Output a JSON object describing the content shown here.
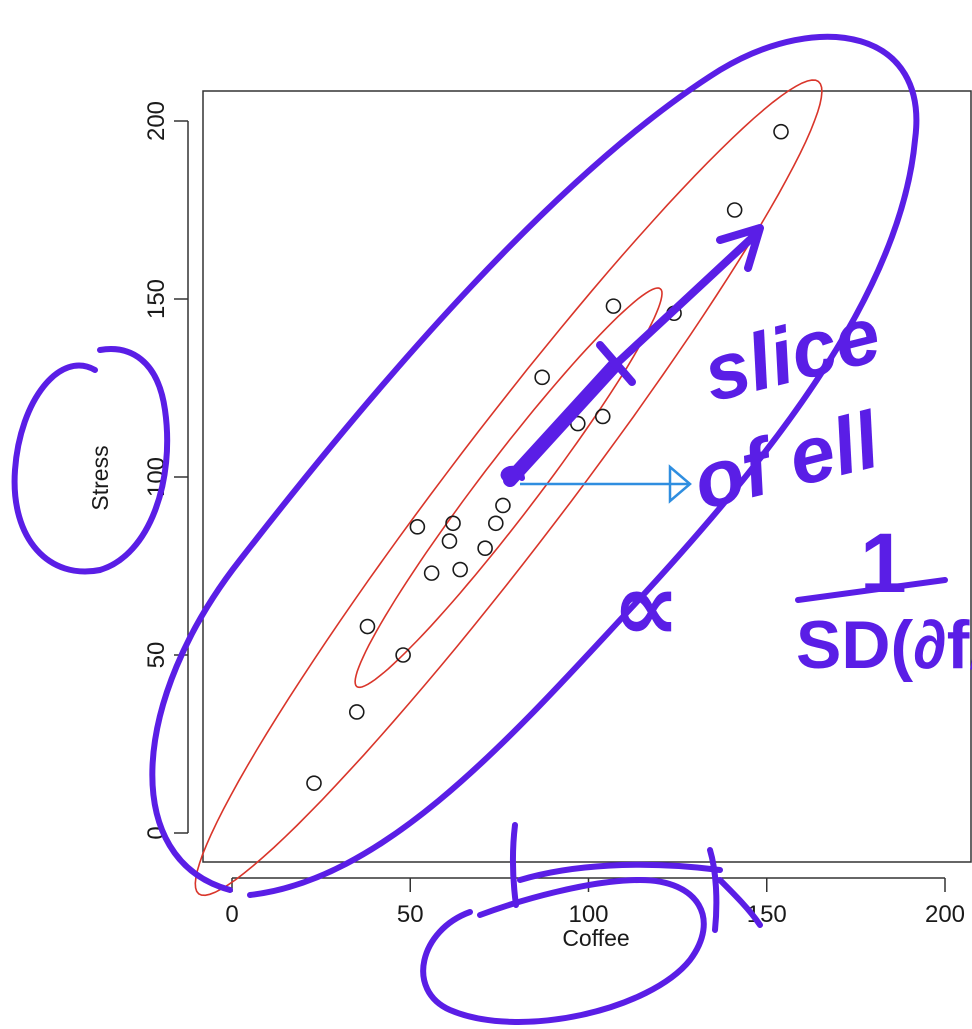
{
  "chart_data": {
    "type": "scatter",
    "title": "",
    "xlabel": "Coffee",
    "ylabel": "Stress",
    "xlim": [
      -8,
      208
    ],
    "ylim": [
      -8,
      208
    ],
    "x_ticks": [
      0,
      50,
      100,
      150,
      200
    ],
    "y_ticks": [
      0,
      50,
      100,
      150,
      200
    ],
    "grid": false,
    "points": [
      {
        "x": 23,
        "y": 14
      },
      {
        "x": 35,
        "y": 34
      },
      {
        "x": 38,
        "y": 58
      },
      {
        "x": 48,
        "y": 50
      },
      {
        "x": 52,
        "y": 86
      },
      {
        "x": 56,
        "y": 73
      },
      {
        "x": 61,
        "y": 82
      },
      {
        "x": 62,
        "y": 87
      },
      {
        "x": 64,
        "y": 74
      },
      {
        "x": 71,
        "y": 80
      },
      {
        "x": 74,
        "y": 87
      },
      {
        "x": 76,
        "y": 92
      },
      {
        "x": 87,
        "y": 128
      },
      {
        "x": 97,
        "y": 115
      },
      {
        "x": 104,
        "y": 117
      },
      {
        "x": 107,
        "y": 148
      },
      {
        "x": 124,
        "y": 146
      },
      {
        "x": 141,
        "y": 175
      },
      {
        "x": 154,
        "y": 197
      }
    ],
    "ellipse_color": "#d9352a",
    "point_color": "#1a1a1a"
  },
  "annotations": {
    "ink_color": "#5a1ee6",
    "arrow_color": "#2f8ee0",
    "handwritten_line1": "slice",
    "handwritten_line2": "of ell",
    "handwritten_numerator": "1",
    "handwritten_prefix": "∝",
    "handwritten_denominator": "SD(∂f/∂"
  }
}
